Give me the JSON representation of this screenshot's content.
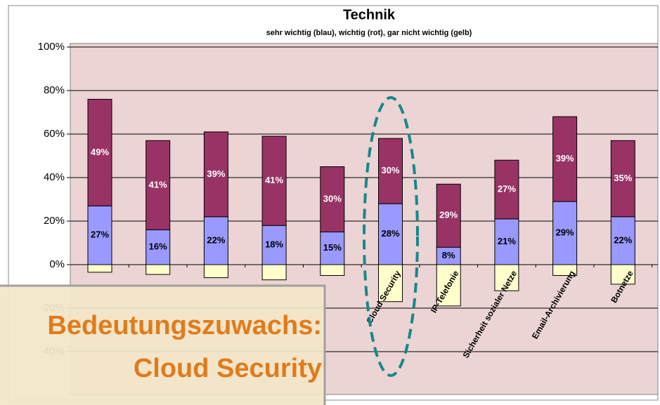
{
  "chart_data": {
    "type": "bar",
    "stacked": true,
    "title": "Technik",
    "subtitle": "sehr wichtig (blau), wichtig (rot), gar nicht wichtig (gelb)",
    "categories": [
      null,
      null,
      null,
      null,
      null,
      "Cloud Security",
      "IP-Telefonie",
      "Sicherheit sozialer Netze",
      "Email-Archivierung",
      "Botnetze"
    ],
    "series": [
      {
        "color": "#9999ff",
        "values": [
          27,
          16,
          22,
          18,
          15,
          28,
          8,
          21,
          29,
          22
        ],
        "value_labels": [
          "27%",
          "16%",
          "22%",
          "18%",
          "15%",
          "28%",
          "8%",
          "21%",
          "29%",
          "22%"
        ]
      },
      {
        "color": "#993366",
        "values": [
          49,
          41,
          39,
          41,
          30,
          30,
          29,
          27,
          39,
          35
        ],
        "value_labels": [
          "49%",
          "41%",
          "39%",
          "41%",
          "30%",
          "30%",
          "29%",
          "27%",
          "39%",
          "35%"
        ]
      },
      {
        "color": "#ffffcc",
        "values": [
          -3.5,
          -4.5,
          -6,
          -7,
          -5,
          -17,
          -19,
          -12,
          -5,
          -9
        ]
      }
    ],
    "ylim": [
      -40,
      100
    ],
    "yticks": [
      {
        "value": -40,
        "label": "-40%"
      },
      {
        "value": -20,
        "label": "-20%"
      },
      {
        "value": 0,
        "label": "0%"
      },
      {
        "value": 20,
        "label": "20%"
      },
      {
        "value": 40,
        "label": "40%"
      },
      {
        "value": 60,
        "label": "60%"
      },
      {
        "value": 80,
        "label": "80%"
      },
      {
        "value": 100,
        "label": "100%"
      }
    ],
    "grid": true,
    "plot_background": "#ecd4d4",
    "annotation": {
      "lines": [
        "Bedeutungszuwachs:",
        "Cloud Security"
      ],
      "color": "#e07b1c"
    }
  }
}
